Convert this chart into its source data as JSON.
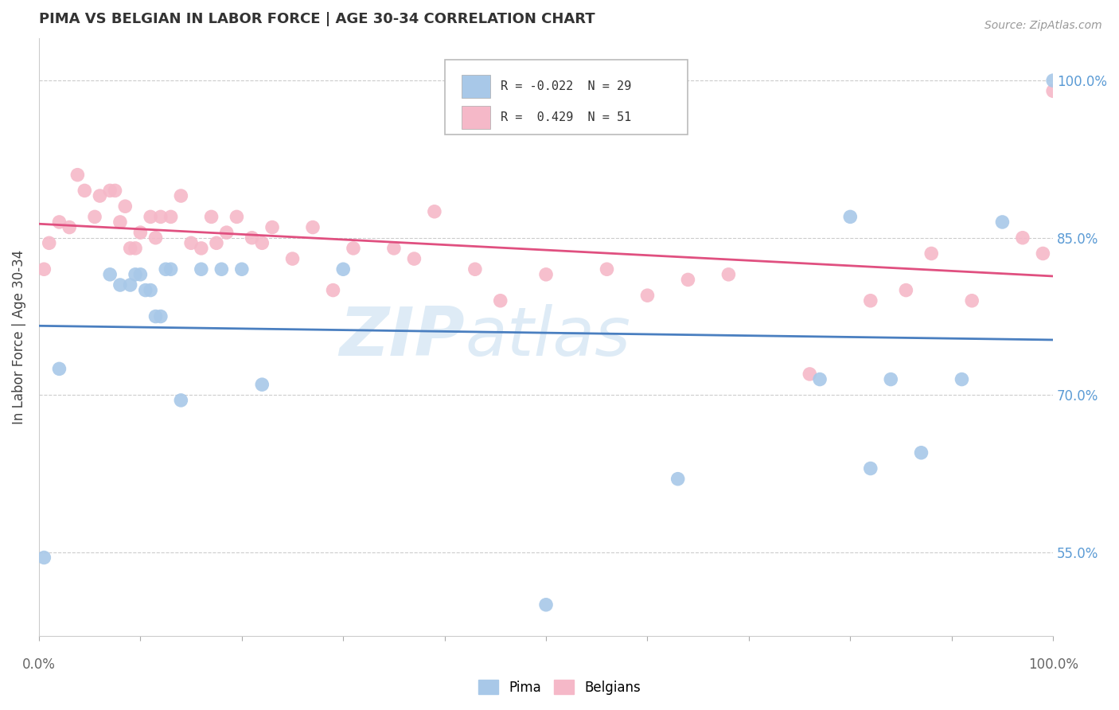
{
  "title": "PIMA VS BELGIAN IN LABOR FORCE | AGE 30-34 CORRELATION CHART",
  "source": "Source: ZipAtlas.com",
  "ylabel": "In Labor Force | Age 30-34",
  "xlim": [
    0.0,
    1.0
  ],
  "ylim": [
    0.47,
    1.04
  ],
  "yticks": [
    0.55,
    0.7,
    0.85,
    1.0
  ],
  "ytick_labels": [
    "55.0%",
    "70.0%",
    "85.0%",
    "100.0%"
  ],
  "pima_color": "#a8c8e8",
  "belgian_color": "#f5b8c8",
  "pima_line_color": "#4a7fc0",
  "belgian_line_color": "#e05080",
  "watermark_zip": "ZIP",
  "watermark_atlas": "atlas",
  "legend_R_pima": "-0.022",
  "legend_N_pima": "29",
  "legend_R_belgian": "0.429",
  "legend_N_belgian": "51",
  "pima_x": [
    0.005,
    0.02,
    0.07,
    0.08,
    0.09,
    0.095,
    0.1,
    0.105,
    0.11,
    0.115,
    0.12,
    0.125,
    0.13,
    0.14,
    0.16,
    0.18,
    0.2,
    0.22,
    0.3,
    0.5,
    0.63,
    0.77,
    0.8,
    0.82,
    0.84,
    0.87,
    0.91,
    0.95,
    1.0
  ],
  "pima_y": [
    0.545,
    0.725,
    0.815,
    0.805,
    0.805,
    0.815,
    0.815,
    0.8,
    0.8,
    0.775,
    0.775,
    0.82,
    0.82,
    0.695,
    0.82,
    0.82,
    0.82,
    0.71,
    0.82,
    0.5,
    0.62,
    0.715,
    0.87,
    0.63,
    0.715,
    0.645,
    0.715,
    0.865,
    1.0
  ],
  "belgian_x": [
    0.005,
    0.01,
    0.02,
    0.03,
    0.038,
    0.045,
    0.055,
    0.06,
    0.07,
    0.075,
    0.08,
    0.085,
    0.09,
    0.095,
    0.1,
    0.11,
    0.115,
    0.12,
    0.13,
    0.14,
    0.15,
    0.16,
    0.17,
    0.175,
    0.185,
    0.195,
    0.21,
    0.22,
    0.23,
    0.25,
    0.27,
    0.29,
    0.31,
    0.35,
    0.37,
    0.39,
    0.43,
    0.455,
    0.5,
    0.56,
    0.6,
    0.64,
    0.68,
    0.76,
    0.82,
    0.855,
    0.88,
    0.92,
    0.97,
    0.99,
    1.0
  ],
  "belgian_y": [
    0.82,
    0.845,
    0.865,
    0.86,
    0.91,
    0.895,
    0.87,
    0.89,
    0.895,
    0.895,
    0.865,
    0.88,
    0.84,
    0.84,
    0.855,
    0.87,
    0.85,
    0.87,
    0.87,
    0.89,
    0.845,
    0.84,
    0.87,
    0.845,
    0.855,
    0.87,
    0.85,
    0.845,
    0.86,
    0.83,
    0.86,
    0.8,
    0.84,
    0.84,
    0.83,
    0.875,
    0.82,
    0.79,
    0.815,
    0.82,
    0.795,
    0.81,
    0.815,
    0.72,
    0.79,
    0.8,
    0.835,
    0.79,
    0.85,
    0.835,
    0.99
  ],
  "background_color": "#ffffff",
  "grid_color": "#cccccc"
}
